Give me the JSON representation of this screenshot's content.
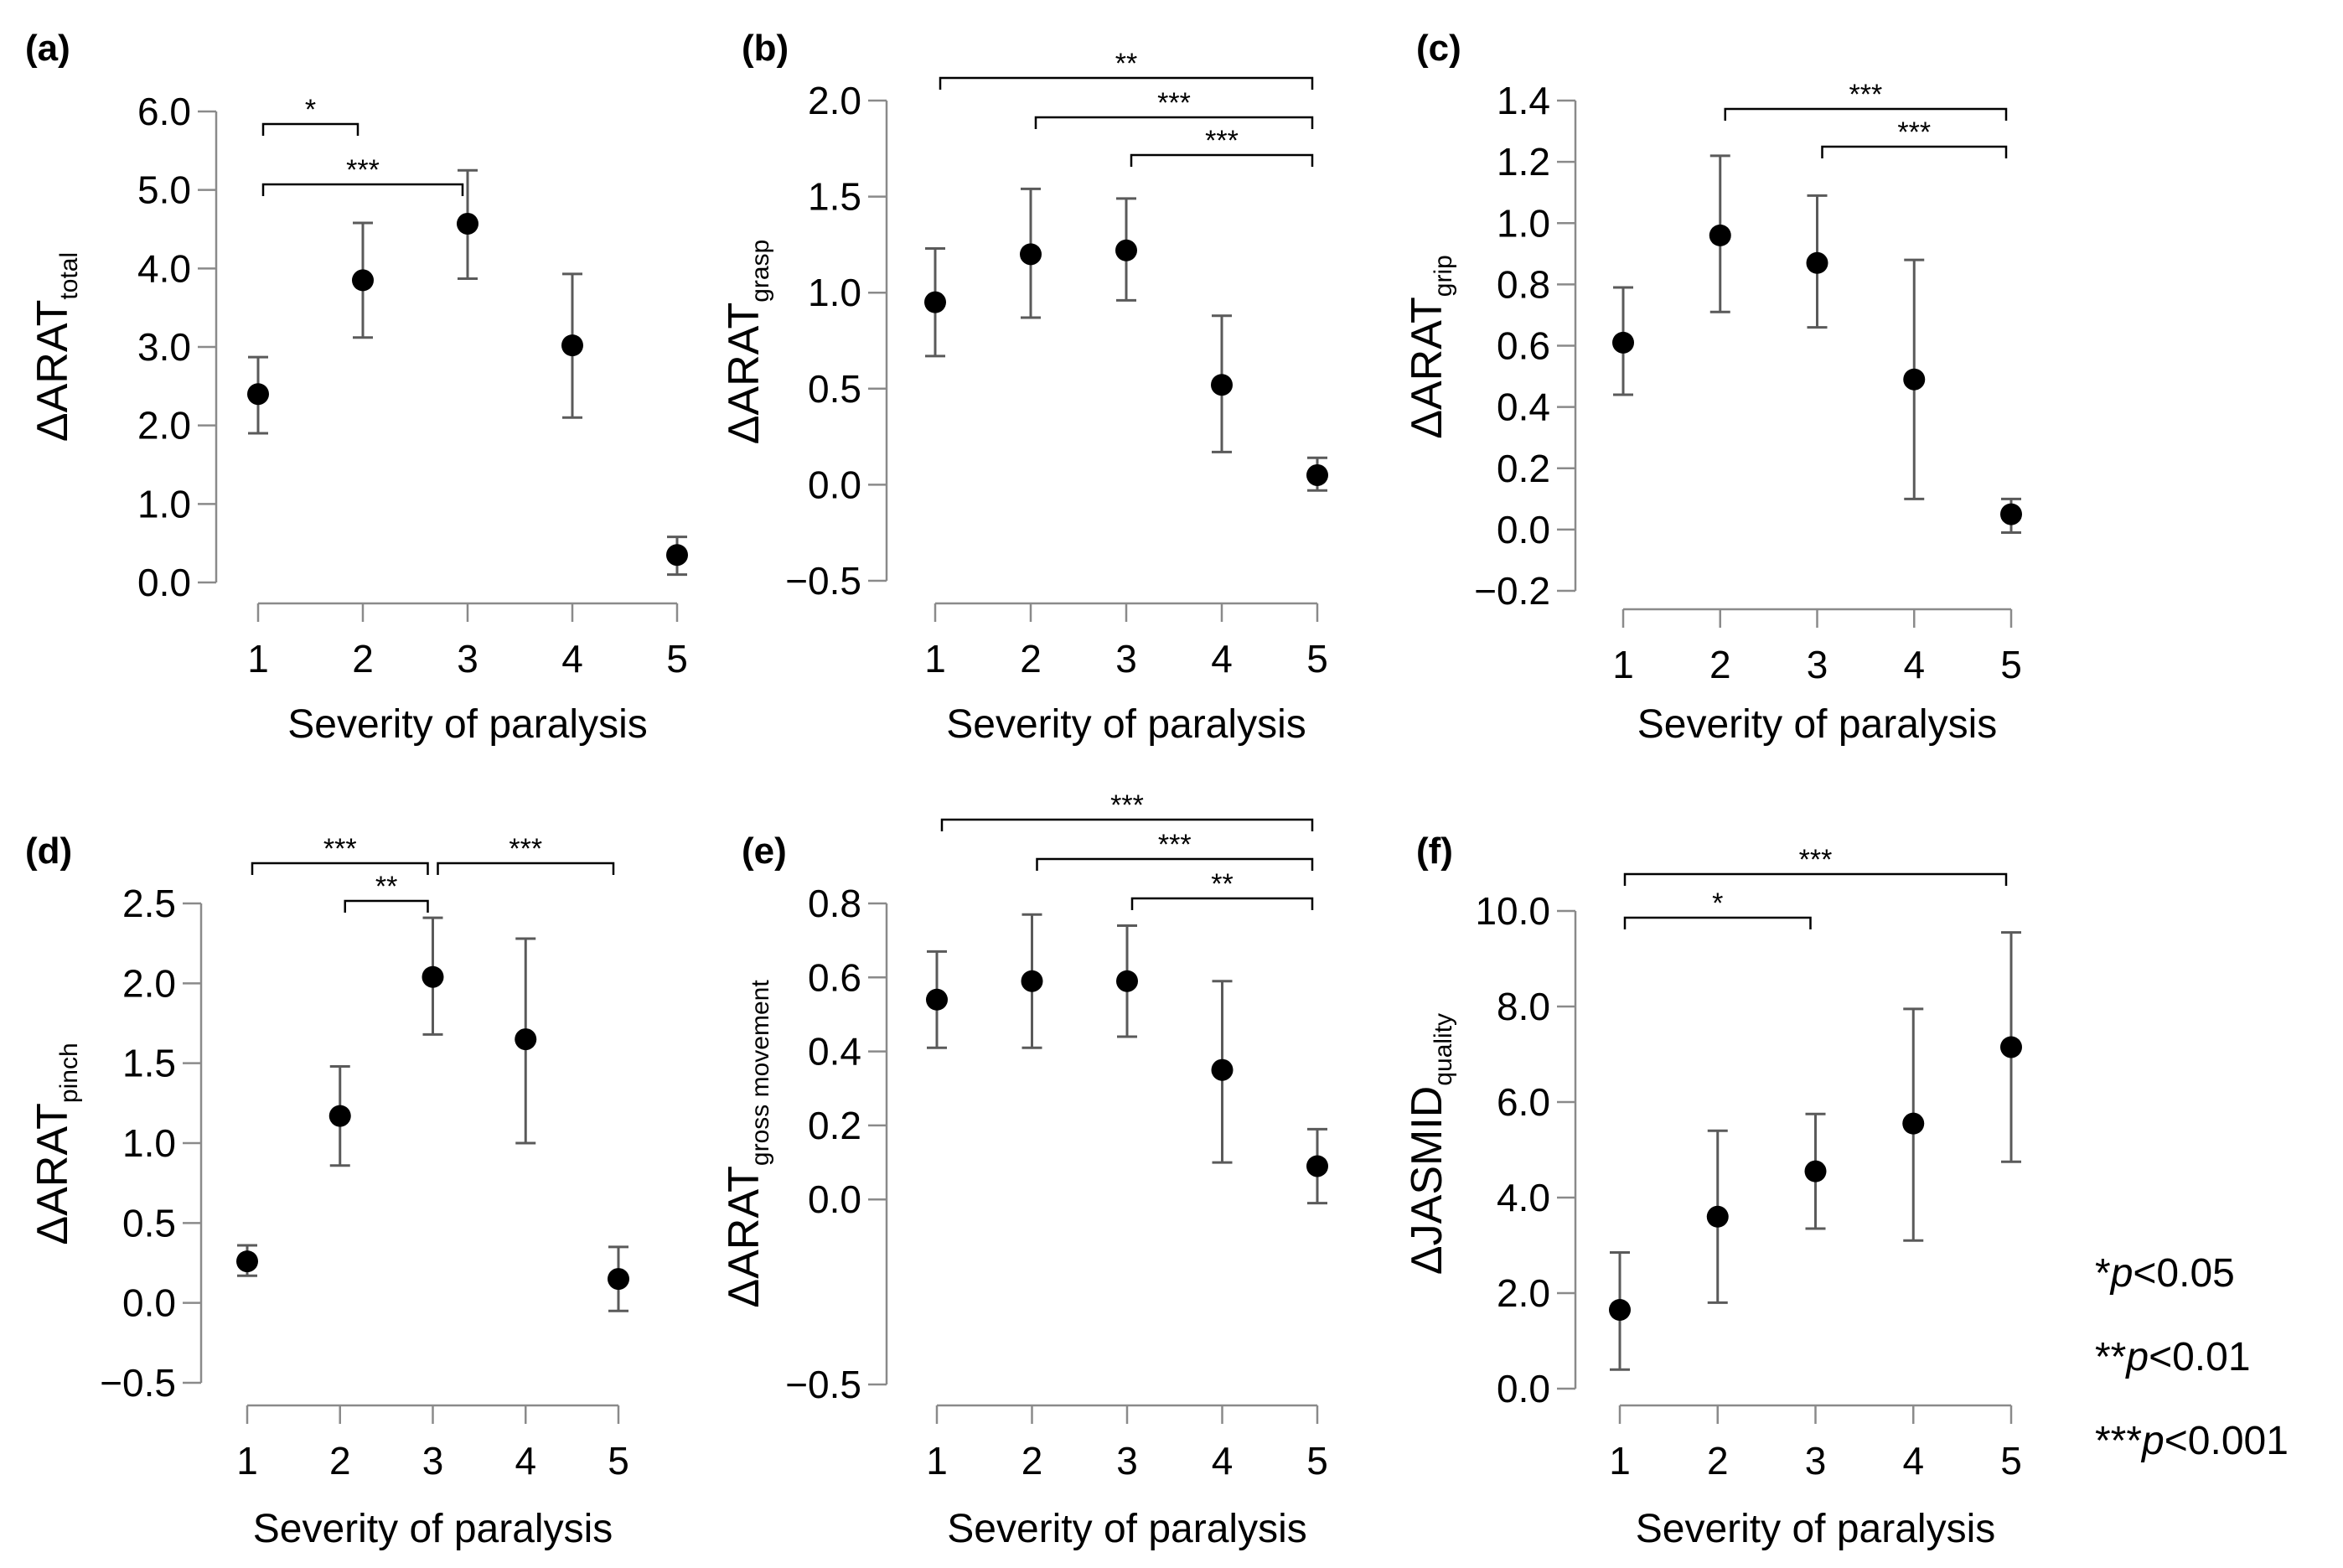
{
  "chart_data": [
    {
      "id": "a",
      "type": "scatter",
      "panel_label": "(a)",
      "title": "",
      "ylabel": "ΔARAT",
      "ylabel_sub": "total",
      "xlabel": "Severity of paralysis",
      "categories": [
        "1",
        "2",
        "3",
        "4",
        "5"
      ],
      "ylim": [
        0.0,
        6.0
      ],
      "yticks": [
        "0.0",
        "1.0",
        "2.0",
        "3.0",
        "4.0",
        "5.0",
        "6.0"
      ],
      "ytick_values": [
        0,
        1,
        2,
        3,
        4,
        5,
        6
      ],
      "values": [
        2.4,
        3.85,
        4.57,
        3.02,
        0.35
      ],
      "error_low": [
        1.9,
        3.12,
        3.87,
        2.1,
        0.1
      ],
      "error_high": [
        2.87,
        4.58,
        5.25,
        3.93,
        0.58
      ],
      "significance": [
        {
          "from": "1",
          "to": "2",
          "label": "*"
        },
        {
          "from": "1",
          "to": "3",
          "label": "***"
        }
      ]
    },
    {
      "id": "b",
      "type": "scatter",
      "panel_label": "(b)",
      "title": "",
      "ylabel": "ΔARAT",
      "ylabel_sub": "grasp",
      "xlabel": "Severity of paralysis",
      "categories": [
        "1",
        "2",
        "3",
        "4",
        "5"
      ],
      "ylim": [
        -0.5,
        2.0
      ],
      "yticks": [
        "−0.5",
        "0.0",
        "0.5",
        "1.0",
        "1.5",
        "2.0"
      ],
      "ytick_values": [
        -0.5,
        0,
        0.5,
        1.0,
        1.5,
        2.0
      ],
      "values": [
        0.95,
        1.2,
        1.22,
        0.52,
        0.05
      ],
      "error_low": [
        0.67,
        0.87,
        0.96,
        0.17,
        -0.03
      ],
      "error_high": [
        1.23,
        1.54,
        1.49,
        0.88,
        0.14
      ],
      "significance": [
        {
          "from": "1",
          "to": "5",
          "label": "**"
        },
        {
          "from": "2",
          "to": "5",
          "label": "***"
        },
        {
          "from": "3",
          "to": "5",
          "label": "***"
        }
      ]
    },
    {
      "id": "c",
      "type": "scatter",
      "panel_label": "(c)",
      "title": "",
      "ylabel": "ΔARAT",
      "ylabel_sub": "grip",
      "xlabel": "Severity of paralysis",
      "categories": [
        "1",
        "2",
        "3",
        "4",
        "5"
      ],
      "ylim": [
        -0.2,
        1.4
      ],
      "yticks": [
        "−0.2",
        "0.0",
        "0.2",
        "0.4",
        "0.6",
        "0.8",
        "1.0",
        "1.2",
        "1.4"
      ],
      "ytick_values": [
        -0.2,
        0,
        0.2,
        0.4,
        0.6,
        0.8,
        1.0,
        1.2,
        1.4
      ],
      "values": [
        0.61,
        0.96,
        0.87,
        0.49,
        0.05
      ],
      "error_low": [
        0.44,
        0.71,
        0.66,
        0.1,
        -0.01
      ],
      "error_high": [
        0.79,
        1.22,
        1.09,
        0.88,
        0.1
      ],
      "significance": [
        {
          "from": "2",
          "to": "5",
          "label": "***"
        },
        {
          "from": "3",
          "to": "5",
          "label": "***"
        }
      ]
    },
    {
      "id": "d",
      "type": "scatter",
      "panel_label": "(d)",
      "title": "",
      "ylabel": "ΔARAT",
      "ylabel_sub": "pinch",
      "xlabel": "Severity of paralysis",
      "categories": [
        "1",
        "2",
        "3",
        "4",
        "5"
      ],
      "ylim": [
        -0.5,
        2.5
      ],
      "yticks": [
        "−0.5",
        "0.0",
        "0.5",
        "1.0",
        "1.5",
        "2.0",
        "2.5"
      ],
      "ytick_values": [
        -0.5,
        0,
        0.5,
        1.0,
        1.5,
        2.0,
        2.5
      ],
      "values": [
        0.26,
        1.17,
        2.04,
        1.65,
        0.15
      ],
      "error_low": [
        0.17,
        0.86,
        1.68,
        1.0,
        -0.05
      ],
      "error_high": [
        0.36,
        1.48,
        2.41,
        2.28,
        0.35
      ],
      "significance": [
        {
          "from": "1",
          "to": "3",
          "label": "***"
        },
        {
          "from": "2",
          "to": "3",
          "label": "**"
        },
        {
          "from": "3",
          "to": "5",
          "label": "***"
        }
      ]
    },
    {
      "id": "e",
      "type": "scatter",
      "panel_label": "(e)",
      "title": "",
      "ylabel": "ΔARAT",
      "ylabel_sub": "gross movement",
      "xlabel": "Severity of paralysis",
      "categories": [
        "1",
        "2",
        "3",
        "4",
        "5"
      ],
      "ylim": [
        -0.5,
        0.8
      ],
      "yticks": [
        "−0.5",
        "0.0",
        "0.2",
        "0.4",
        "0.6",
        "0.8"
      ],
      "ytick_values": [
        -0.5,
        0,
        0.2,
        0.4,
        0.6,
        0.8
      ],
      "values": [
        0.54,
        0.59,
        0.59,
        0.35,
        0.09
      ],
      "error_low": [
        0.41,
        0.41,
        0.44,
        0.1,
        -0.01
      ],
      "error_high": [
        0.67,
        0.77,
        0.74,
        0.59,
        0.19
      ],
      "significance": [
        {
          "from": "1",
          "to": "5",
          "label": "***"
        },
        {
          "from": "2",
          "to": "5",
          "label": "***"
        },
        {
          "from": "3",
          "to": "5",
          "label": "**"
        }
      ]
    },
    {
      "id": "f",
      "type": "scatter",
      "panel_label": "(f)",
      "title": "",
      "ylabel": "ΔJASMID",
      "ylabel_sub": "quality",
      "xlabel": "Severity of paralysis",
      "categories": [
        "1",
        "2",
        "3",
        "4",
        "5"
      ],
      "ylim": [
        0.0,
        10.0
      ],
      "yticks": [
        "0.0",
        "2.0",
        "4.0",
        "6.0",
        "8.0",
        "10.0"
      ],
      "ytick_values": [
        0,
        2,
        4,
        6,
        8,
        10
      ],
      "values": [
        1.65,
        3.6,
        4.55,
        5.55,
        7.15
      ],
      "error_low": [
        0.4,
        1.8,
        3.35,
        3.1,
        4.75
      ],
      "error_high": [
        2.85,
        5.4,
        5.75,
        7.95,
        9.55
      ],
      "significance": [
        {
          "from": "1",
          "to": "3",
          "label": "*"
        },
        {
          "from": "1",
          "to": "5",
          "label": "***"
        }
      ]
    }
  ],
  "legend": {
    "items": [
      {
        "stars": "*",
        "p": "p",
        "rel": "<0.05"
      },
      {
        "stars": "**",
        "p": "p",
        "rel": "<0.01"
      },
      {
        "stars": "***",
        "p": "p",
        "rel": "<0.001"
      }
    ]
  }
}
